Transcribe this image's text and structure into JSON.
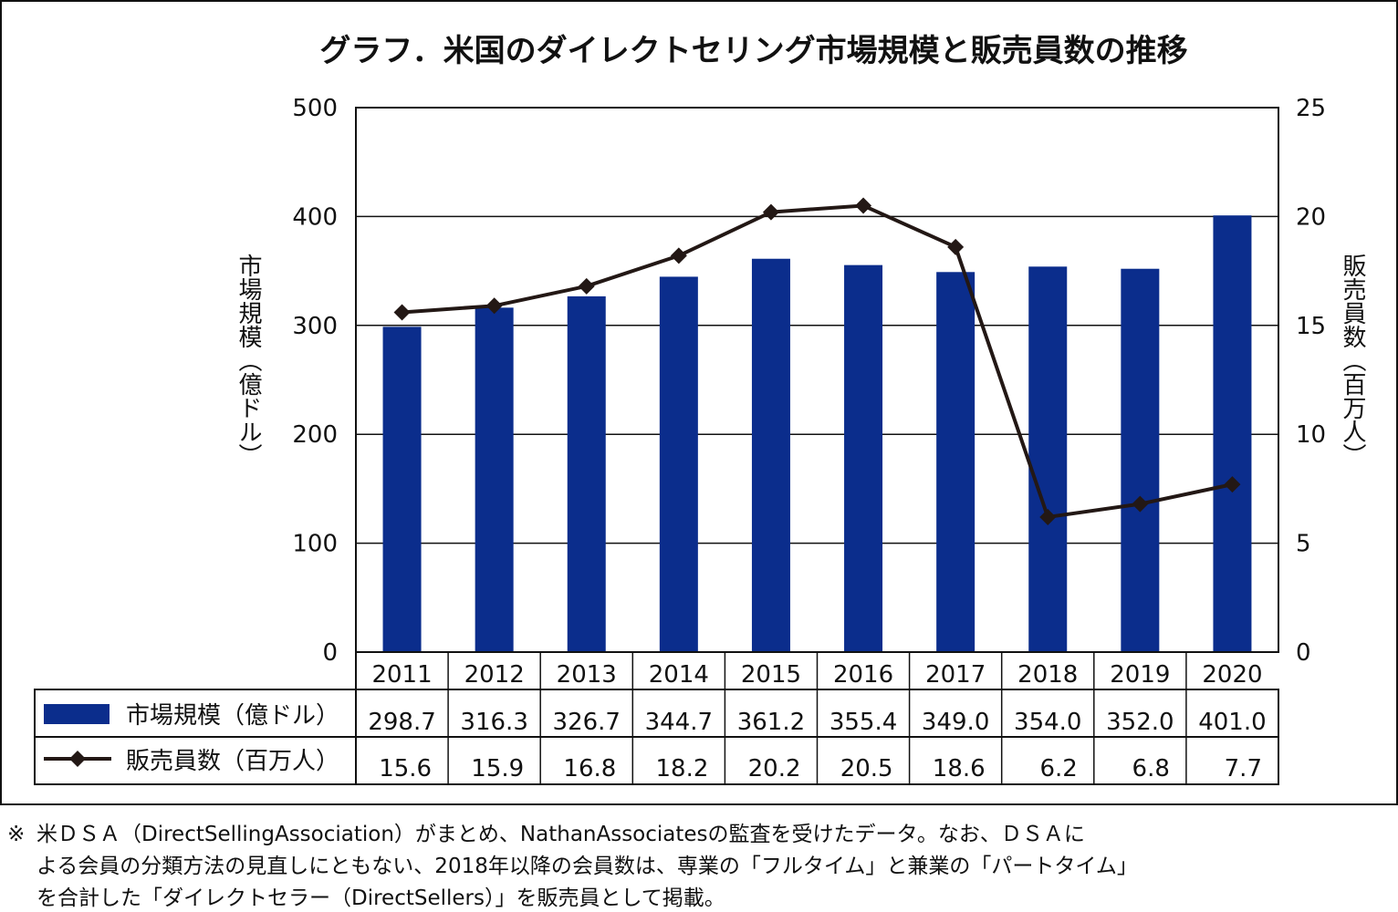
{
  "chart_data": {
    "type": "bar",
    "title": "グラフ．米国のダイレクトセリング市場規模と販売員数の推移",
    "categories": [
      "2011",
      "2012",
      "2013",
      "2014",
      "2015",
      "2016",
      "2017",
      "2018",
      "2019",
      "2020"
    ],
    "series": [
      {
        "name": "市場規模（億ドル）",
        "type": "bar",
        "axis": "left",
        "color": "#0b2d8c",
        "values": [
          298.7,
          316.3,
          326.7,
          344.7,
          361.2,
          355.4,
          349.0,
          354.0,
          352.0,
          401.0
        ],
        "labels": [
          "298.7",
          "316.3",
          "326.7",
          "344.7",
          "361.2",
          "355.4",
          "349.0",
          "354.0",
          "352.0",
          "401.0"
        ]
      },
      {
        "name": "販売員数（百万人）",
        "type": "line",
        "axis": "right",
        "color": "#231815",
        "marker": "diamond",
        "values": [
          15.6,
          15.9,
          16.8,
          18.2,
          20.2,
          20.5,
          18.6,
          6.2,
          6.8,
          7.7
        ],
        "labels": [
          "15.6",
          "15.9",
          "16.8",
          "18.2",
          "20.2",
          "20.5",
          "18.6",
          "6.2",
          "6.8",
          "7.7"
        ]
      }
    ],
    "y_left": {
      "label": "市場規模（億ドル）",
      "range": [
        0,
        500
      ],
      "ticks": [
        "0",
        "100",
        "200",
        "300",
        "400",
        "500"
      ]
    },
    "y_right": {
      "label": "販売員数（百万人）",
      "range": [
        0,
        25
      ],
      "ticks": [
        "0",
        "5",
        "10",
        "15",
        "20",
        "25"
      ]
    },
    "grid": true,
    "legend": "data-table"
  },
  "footnote": {
    "mark": "※",
    "lines": [
      "米ＤＳＡ（DirectSellingAssociation）がまとめ、NathanAssociatesの監査を受けたデータ。なお、ＤＳＡに",
      "よる会員の分類方法の見直しにともない、2018年以降の会員数は、専業の「フルタイム」と兼業の「パートタイム」",
      "を合計した「ダイレクトセラー（DirectSellers）」を販売員として掲載。"
    ]
  }
}
